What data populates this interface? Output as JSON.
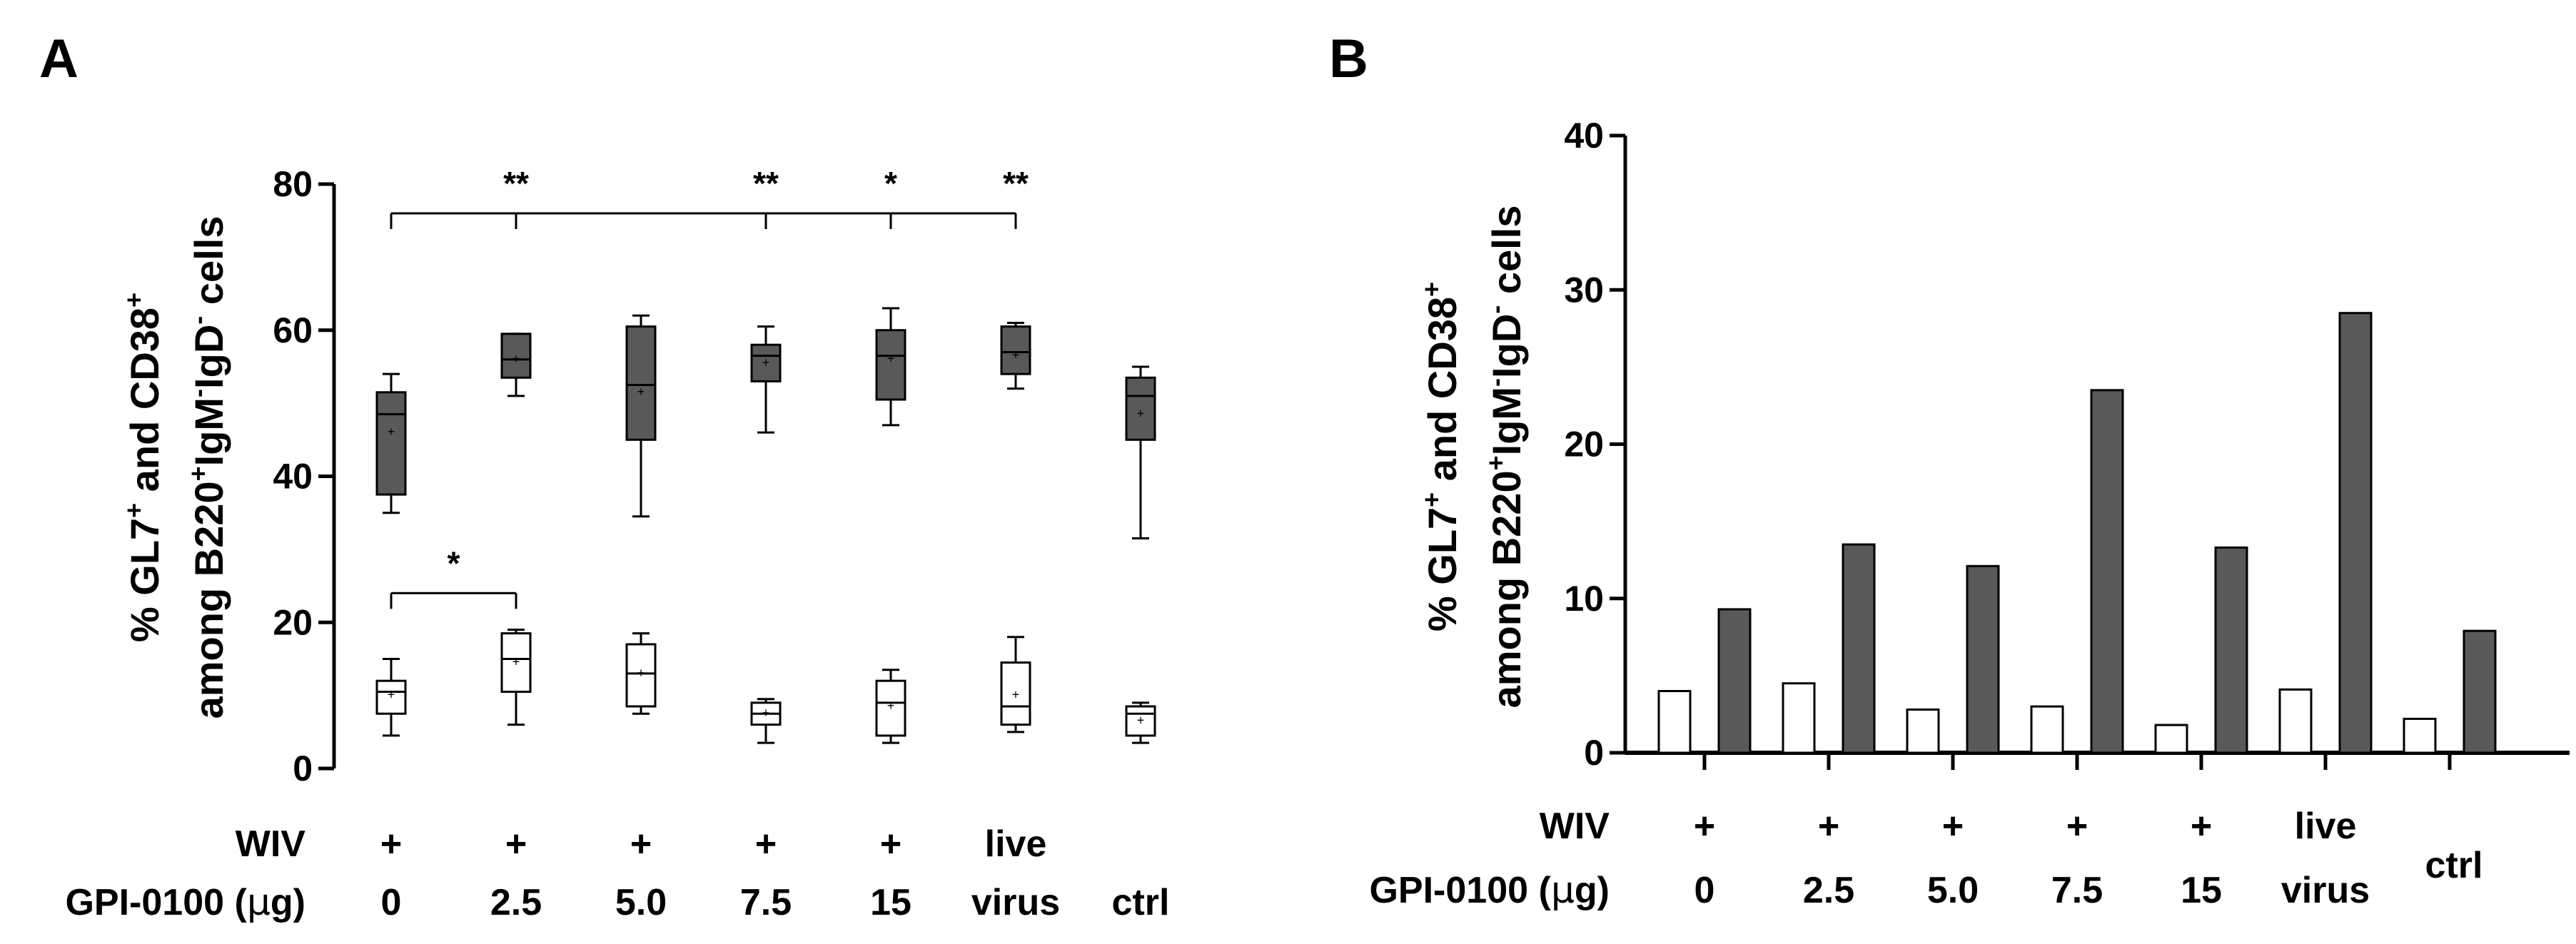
{
  "colors": {
    "filled": "#595959",
    "open": "#ffffff",
    "stroke": "#000000"
  },
  "row_labels": {
    "wiv": "WIV",
    "gpi_prefix": "GPI-0100 (",
    "gpi_mu": "μ",
    "gpi_suffix": "g)"
  },
  "chart_data": [
    {
      "panel": "A",
      "type": "box",
      "ylabel_line1": {
        "a": "% GL7",
        "sup1": "+",
        "b": " and CD38",
        "sup2": "+"
      },
      "ylabel_line2": {
        "a": "among B220",
        "sup1": "+",
        "b": "IgM",
        "sup2": "-",
        "c": "IgD",
        "sup3": "-",
        "d": " cells"
      },
      "ylim": [
        0,
        80
      ],
      "yticks": [
        "0",
        "20",
        "40",
        "60",
        "80"
      ],
      "categories": [
        {
          "wiv": "+",
          "gpi": "0"
        },
        {
          "wiv": "+",
          "gpi": "2.5"
        },
        {
          "wiv": "+",
          "gpi": "5.0"
        },
        {
          "wiv": "+",
          "gpi": "7.5"
        },
        {
          "wiv": "+",
          "gpi": "15"
        },
        {
          "wiv": "live",
          "gpi": "virus"
        },
        {
          "wiv": "",
          "gpi": "ctrl"
        }
      ],
      "series": [
        {
          "fill": "open",
          "boxes": [
            {
              "min": 4.5,
              "q1": 7.5,
              "median": 10.5,
              "q3": 12,
              "max": 15,
              "mean": 10
            },
            {
              "min": 6,
              "q1": 10.5,
              "median": 15,
              "q3": 18.5,
              "max": 19,
              "mean": 14.5
            },
            {
              "min": 7.5,
              "q1": 8.5,
              "median": 13,
              "q3": 17,
              "max": 18.5,
              "mean": 13
            },
            {
              "min": 3.5,
              "q1": 6,
              "median": 7.5,
              "q3": 9,
              "max": 9.5,
              "mean": 7.5
            },
            {
              "min": 3.5,
              "q1": 4.5,
              "median": 9,
              "q3": 12,
              "max": 13.5,
              "mean": 8.5
            },
            {
              "min": 5,
              "q1": 6,
              "median": 8.5,
              "q3": 14.5,
              "max": 18,
              "mean": 10
            },
            {
              "min": 3.5,
              "q1": 4.5,
              "median": 7.5,
              "q3": 8.5,
              "max": 9,
              "mean": 6.5
            }
          ]
        },
        {
          "fill": "filled",
          "boxes": [
            {
              "min": 35,
              "q1": 37.5,
              "median": 48.5,
              "q3": 51.5,
              "max": 54,
              "mean": 46
            },
            {
              "min": 51,
              "q1": 53.5,
              "median": 56,
              "q3": 59.5,
              "max": 59.5,
              "mean": 56
            },
            {
              "min": 34.5,
              "q1": 45,
              "median": 52.5,
              "q3": 60.5,
              "max": 62,
              "mean": 51.5
            },
            {
              "min": 46,
              "q1": 53,
              "median": 56.5,
              "q3": 58,
              "max": 60.5,
              "mean": 55.5
            },
            {
              "min": 47,
              "q1": 50.5,
              "median": 56.5,
              "q3": 60,
              "max": 63,
              "mean": 56
            },
            {
              "min": 52,
              "q1": 54,
              "median": 57,
              "q3": 60.5,
              "max": 61,
              "mean": 56.5
            },
            {
              "min": 31.5,
              "q1": 45,
              "median": 51,
              "q3": 53.5,
              "max": 55,
              "mean": 48.5
            }
          ]
        }
      ],
      "annotations": [
        {
          "type": "bracket",
          "from": 0,
          "to": [
            1,
            3,
            4,
            5
          ],
          "y": 76,
          "labels": [
            "**",
            "**",
            "*",
            "**"
          ]
        },
        {
          "type": "bracket",
          "from": 0,
          "to": [
            1
          ],
          "y": 24,
          "labels": [
            "*"
          ]
        }
      ]
    },
    {
      "panel": "B",
      "type": "bar",
      "ylabel_line1": {
        "a": "% GL7",
        "sup1": "+",
        "b": " and CD38",
        "sup2": "+"
      },
      "ylabel_line2": {
        "a": "among B220",
        "sup1": "+",
        "b": "IgM",
        "sup2": "-",
        "c": "IgD",
        "sup3": "-",
        "d": " cells"
      },
      "ylim": [
        0,
        40
      ],
      "yticks": [
        "0",
        "10",
        "20",
        "30",
        "40"
      ],
      "categories": [
        {
          "wiv": "+",
          "gpi": "0"
        },
        {
          "wiv": "+",
          "gpi": "2.5"
        },
        {
          "wiv": "+",
          "gpi": "5.0"
        },
        {
          "wiv": "+",
          "gpi": "7.5"
        },
        {
          "wiv": "+",
          "gpi": "15"
        },
        {
          "wiv": "live",
          "gpi": "virus"
        },
        {
          "wiv": "",
          "gpi": "ctrl"
        }
      ],
      "series": [
        {
          "fill": "open",
          "values": [
            4,
            4.5,
            2.8,
            3,
            1.8,
            4.1,
            2.2
          ]
        },
        {
          "fill": "filled",
          "values": [
            9.3,
            13.5,
            12.1,
            23.5,
            13.3,
            28.5,
            7.9
          ]
        }
      ]
    }
  ]
}
